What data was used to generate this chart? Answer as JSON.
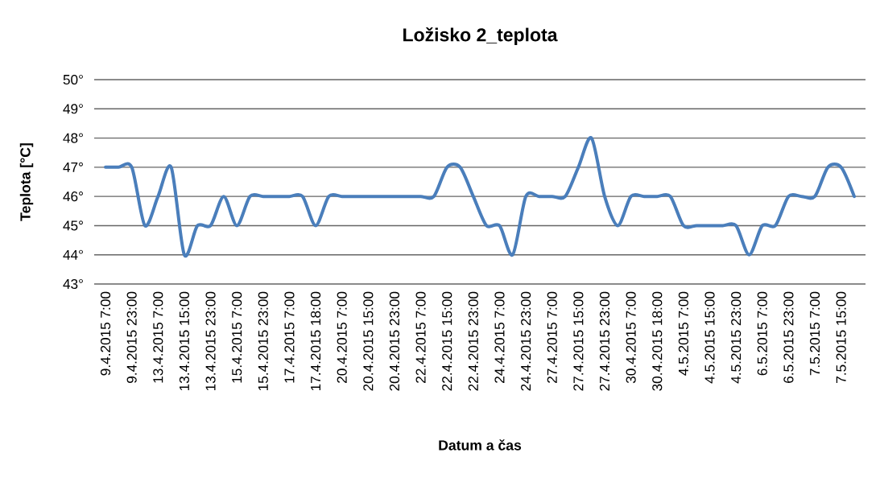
{
  "chart_data": {
    "type": "line",
    "title": "Ložisko 2_teplota",
    "xlabel": "Datum a čas",
    "ylabel": "Teplota [°C]",
    "categories": [
      "9.4.2015 7:00",
      null,
      "9.4.2015 23:00",
      null,
      "13.4.2015 7:00",
      null,
      "13.4.2015 15:00",
      null,
      "13.4.2015 23:00",
      null,
      "15.4.2015 7:00",
      null,
      "15.4.2015 23:00",
      null,
      "17.4.2015 7:00",
      null,
      "17.4.2015 18:00",
      null,
      "20.4.2015 7:00",
      null,
      "20.4.2015 15:00",
      null,
      "20.4.2015 23:00",
      null,
      "22.4.2015 7:00",
      null,
      "22.4.2015 15:00",
      null,
      "22.4.2015 23:00",
      null,
      "24.4.2015 7:00",
      null,
      "24.4.2015 23:00",
      null,
      "27.4.2015 7:00",
      null,
      "27.4.2015 15:00",
      null,
      "27.4.2015 23:00",
      null,
      "30.4.2015 7:00",
      null,
      "30.4.2015 18:00",
      null,
      "4.5.2015 7:00",
      null,
      "4.5.2015 15:00",
      null,
      "4.5.2015 23:00",
      null,
      "6.5.2015 7:00",
      null,
      "6.5.2015 23:00",
      null,
      "7.5.2015 7:00",
      null,
      "7.5.2015 15:00",
      null
    ],
    "values": [
      47,
      47,
      47,
      45,
      46,
      47,
      44,
      45,
      45,
      46,
      45,
      46,
      46,
      46,
      46,
      46,
      45,
      46,
      46,
      46,
      46,
      46,
      46,
      46,
      46,
      46,
      47,
      47,
      46,
      45,
      45,
      44,
      46,
      46,
      46,
      46,
      47,
      48,
      46,
      45,
      46,
      46,
      46,
      46,
      45,
      45,
      45,
      45,
      45,
      44,
      45,
      45,
      46,
      46,
      46,
      47,
      47,
      46
    ],
    "color": "#4a7ebb",
    "line_style": "solid",
    "grid": "y",
    "ylim": [
      43,
      50
    ],
    "yticks": [
      {
        "value": 43,
        "label": "43°"
      },
      {
        "value": 44,
        "label": "44°"
      },
      {
        "value": 45,
        "label": "45°"
      },
      {
        "value": 46,
        "label": "46°"
      },
      {
        "value": 47,
        "label": "47°"
      },
      {
        "value": 48,
        "label": "48°"
      },
      {
        "value": 49,
        "label": "49°"
      },
      {
        "value": 50,
        "label": "50°"
      }
    ]
  }
}
